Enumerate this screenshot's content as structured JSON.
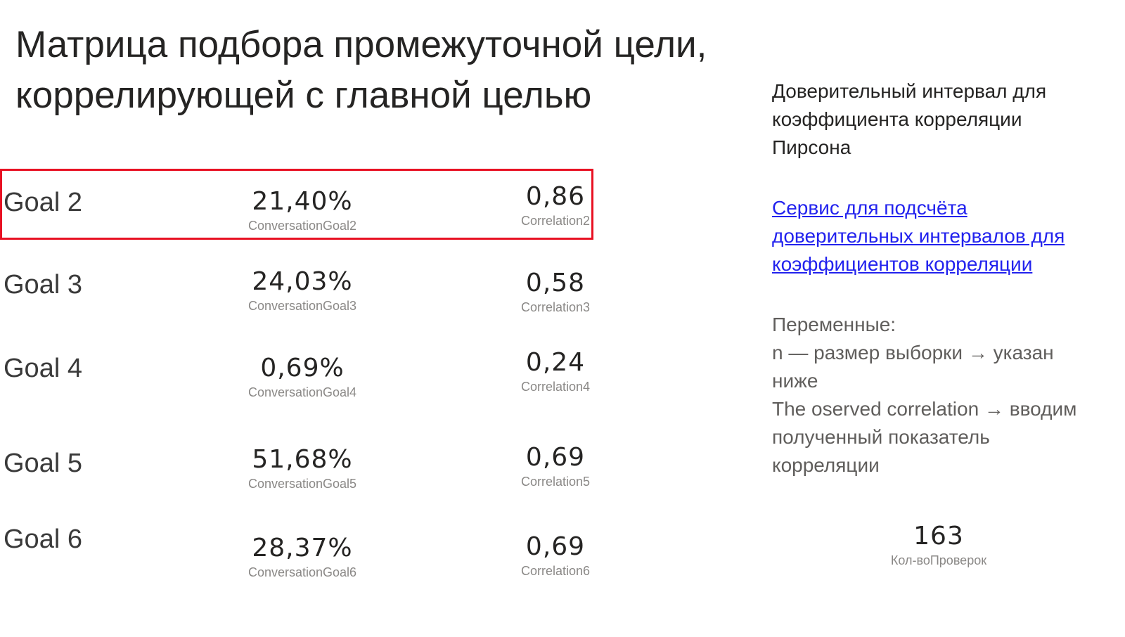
{
  "title": {
    "line1": "Матрица подбора промежуточной цели,",
    "line2": "коррелирующей с главной целью"
  },
  "goals": [
    {
      "label": "Goal 2",
      "conversion_value": "21,40%",
      "conversion_caption": "ConversationGoal2",
      "correlation_value": "0,86",
      "correlation_caption": "Correlation2",
      "highlighted": true
    },
    {
      "label": "Goal 3",
      "conversion_value": "24,03%",
      "conversion_caption": "ConversationGoal3",
      "correlation_value": "0,58",
      "correlation_caption": "Correlation3",
      "highlighted": false
    },
    {
      "label": "Goal 4",
      "conversion_value": "0,69%",
      "conversion_caption": "ConversationGoal4",
      "correlation_value": "0,24",
      "correlation_caption": "Correlation4",
      "highlighted": false
    },
    {
      "label": "Goal 5",
      "conversion_value": "51,68%",
      "conversion_caption": "ConversationGoal5",
      "correlation_value": "0,69",
      "correlation_caption": "Correlation5",
      "highlighted": false
    },
    {
      "label": "Goal 6",
      "conversion_value": "28,37%",
      "conversion_caption": "ConversationGoal6",
      "correlation_value": "0,69",
      "correlation_caption": "Correlation6",
      "highlighted": false
    }
  ],
  "sidebar": {
    "heading": [
      "Доверительный интервал для",
      "коэффициента корреляции",
      "Пирсона"
    ],
    "link": [
      "Сервис для подсчёта ",
      "доверительных интервалов для ",
      "коэффициентов корреляции"
    ],
    "variables": [
      "Переменные:",
      "n — размер выборки → указан",
      "ниже",
      "The oserved correlation → вводим",
      "полученный показатель",
      "корреляции"
    ]
  },
  "checks_card": {
    "value": "163",
    "caption": "Кол-воПроверок"
  },
  "colors": {
    "highlight_border": "#e81123",
    "link": "#2222ee",
    "caption": "#8a8886",
    "text": "#252423"
  }
}
